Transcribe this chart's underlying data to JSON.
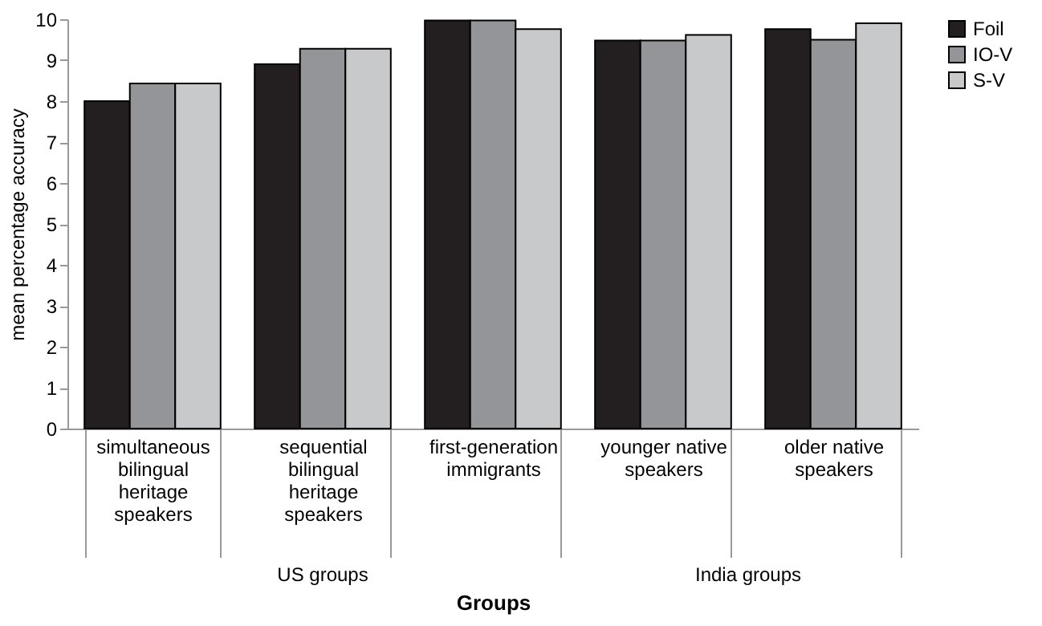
{
  "chart_data": {
    "type": "bar",
    "xlabel": "Groups",
    "ylabel": "mean percentage accuracy",
    "categories": [
      "simultaneous bilingual heritage speakers",
      "sequential bilingual heritage speakers",
      "first-generation immigrants",
      "younger native speakers",
      "older native speakers"
    ],
    "series": [
      {
        "name": "Foil",
        "color": "#231f20",
        "values": [
          8.0,
          8.9,
          9.97,
          9.48,
          9.76
        ]
      },
      {
        "name": "IO-V",
        "color": "#939598",
        "values": [
          8.43,
          9.28,
          9.97,
          9.48,
          9.5
        ]
      },
      {
        "name": "S-V",
        "color": "#c8c9cb",
        "values": [
          8.43,
          9.28,
          9.76,
          9.62,
          9.9
        ]
      }
    ],
    "ylim": [
      0,
      10
    ],
    "yticks": [
      0,
      1,
      2,
      3,
      4,
      5,
      6,
      7,
      8,
      9,
      10
    ],
    "grid": false,
    "legend": "right",
    "annotations": [
      "US groups",
      "India groups"
    ]
  }
}
